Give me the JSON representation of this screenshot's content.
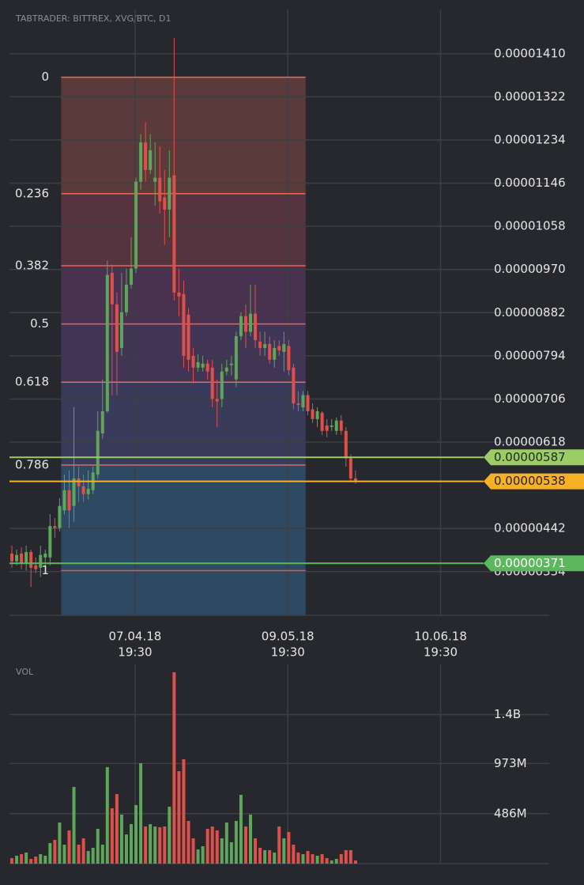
{
  "chart_data": [
    {
      "type": "candlestick",
      "title": "TABTRADER: BITTREX, XVG/BTC, D1",
      "x": [
        "13.03.18",
        "14.03.18",
        "15.03.18",
        "16.03.18",
        "17.03.18",
        "18.03.18",
        "19.03.18",
        "20.03.18",
        "21.03.18",
        "22.03.18",
        "23.03.18",
        "24.03.18",
        "25.03.18",
        "26.03.18",
        "27.03.18",
        "28.03.18",
        "29.03.18",
        "30.03.18",
        "31.03.18",
        "01.04.18",
        "02.04.18",
        "03.04.18",
        "04.04.18",
        "05.04.18",
        "06.04.18",
        "07.04.18",
        "08.04.18",
        "09.04.18",
        "10.04.18",
        "11.04.18",
        "12.04.18",
        "13.04.18",
        "14.04.18",
        "15.04.18",
        "16.04.18",
        "17.04.18",
        "18.04.18",
        "19.04.18",
        "20.04.18",
        "21.04.18",
        "22.04.18",
        "23.04.18",
        "24.04.18",
        "25.04.18",
        "26.04.18",
        "27.04.18",
        "28.04.18",
        "29.04.18",
        "30.04.18",
        "01.05.18",
        "02.05.18",
        "03.05.18",
        "04.05.18",
        "05.05.18",
        "06.05.18",
        "07.05.18",
        "08.05.18",
        "09.05.18",
        "10.05.18",
        "11.05.18",
        "12.05.18",
        "13.05.18",
        "14.05.18",
        "15.05.18",
        "16.05.18",
        "17.05.18",
        "18.05.18",
        "19.05.18",
        "20.05.18",
        "21.05.18",
        "22.05.18",
        "23.05.18",
        "24.05.18"
      ],
      "open": [
        3.91e-06,
        3.75e-06,
        3.91e-06,
        3.72e-06,
        3.94e-06,
        3.67e-06,
        3.62e-06,
        3.83e-06,
        3.83e-06,
        4.47e-06,
        4.43e-06,
        4.79e-06,
        5.2e-06,
        4.88e-06,
        5.44e-06,
        5.28e-06,
        5.12e-06,
        5.2e-06,
        5.52e-06,
        6.36e-06,
        6.81e-06,
        9.63e-06,
        8.99e-06,
        8.1e-06,
        8.83e-06,
        9.39e-06,
        9.72e-06,
        1.149e-05,
        1.229e-05,
        1.173e-05,
        1.149e-05,
        1.157e-05,
        1.117e-05,
        1.092e-05,
        1.162e-05,
        9.23e-06,
        9.2e-06,
        8.78e-06,
        7.94e-06,
        7.7e-06,
        7.7e-06,
        7.78e-06,
        7.7e-06,
        7.06e-06,
        7.06e-06,
        7.62e-06,
        7.75e-06,
        7.46e-06,
        8.34e-06,
        8.75e-06,
        8.43e-06,
        8.8e-06,
        8.23e-06,
        8.1e-06,
        8.18e-06,
        7.86e-06,
        8.14e-06,
        8.02e-06,
        8.14e-06,
        7.7e-06,
        6.97e-06,
        6.89e-06,
        7.14e-06,
        6.85e-06,
        6.65e-06,
        6.78e-06,
        6.52e-06,
        6.49e-06,
        6.41e-06,
        6.62e-06,
        6.41e-06,
        5.85e-06,
        5.44e-06
      ],
      "high": [
        4.07e-06,
        3.99e-06,
        4.04e-06,
        4.07e-06,
        3.99e-06,
        3.83e-06,
        4.07e-06,
        3.99e-06,
        4.71e-06,
        4.63e-06,
        5.04e-06,
        5.52e-06,
        5.6e-06,
        6.89e-06,
        5.68e-06,
        5.52e-06,
        5.6e-06,
        5.68e-06,
        6.81e-06,
        7.46e-06,
        9.88e-06,
        9.8e-06,
        9.23e-06,
        9.63e-06,
        9.72e-06,
        1.036e-05,
        1.157e-05,
        1.246e-05,
        1.27e-05,
        1.246e-05,
        1.229e-05,
        1.221e-05,
        1.173e-05,
        1.213e-05,
        1.442e-05,
        9.72e-06,
        9.47e-06,
        8.91e-06,
        8.1e-06,
        7.97e-06,
        7.94e-06,
        7.86e-06,
        7.86e-06,
        7.46e-06,
        7.78e-06,
        7.86e-06,
        7.94e-06,
        8.43e-06,
        8.83e-06,
        8.99e-06,
        9.39e-06,
        9.39e-06,
        8.43e-06,
        8.43e-06,
        8.34e-06,
        8.26e-06,
        8.26e-06,
        8.43e-06,
        8.26e-06,
        7.78e-06,
        7.22e-06,
        7.22e-06,
        7.22e-06,
        6.97e-06,
        6.89e-06,
        6.81e-06,
        6.65e-06,
        6.65e-06,
        6.68e-06,
        6.73e-06,
        6.49e-06,
        5.93e-06,
        5.6e-06
      ],
      "low": [
        3.62e-06,
        3.67e-06,
        3.59e-06,
        3.56e-06,
        3.23e-06,
        3.51e-06,
        3.43e-06,
        3.67e-06,
        3.67e-06,
        4.23e-06,
        4.36e-06,
        4.71e-06,
        4.43e-06,
        4.56e-06,
        4.96e-06,
        4.96e-06,
        5.01e-06,
        5.12e-06,
        5.44e-06,
        6.25e-06,
        6.78e-06,
        7.14e-06,
        7.14e-06,
        7.94e-06,
        8.75e-06,
        9.31e-06,
        9.63e-06,
        1.133e-05,
        1.149e-05,
        1.165e-05,
        1.1e-05,
        1.084e-05,
        1.02e-05,
        1.036e-05,
        9.07e-06,
        8.75e-06,
        7.7e-06,
        7.62e-06,
        7.38e-06,
        7.62e-06,
        7.62e-06,
        7.46e-06,
        6.89e-06,
        6.49e-06,
        6.89e-06,
        7.54e-06,
        7.54e-06,
        7.3e-06,
        8.26e-06,
        8.1e-06,
        8.34e-06,
        8.1e-06,
        7.94e-06,
        7.94e-06,
        7.78e-06,
        7.7e-06,
        7.94e-06,
        7.62e-06,
        7.54e-06,
        6.85e-06,
        6.81e-06,
        6.81e-06,
        6.73e-06,
        6.57e-06,
        6.49e-06,
        6.33e-06,
        6.28e-06,
        6.41e-06,
        6.33e-06,
        6.33e-06,
        5.68e-06,
        5.36e-06,
        5.33e-06
      ],
      "close": [
        3.75e-06,
        3.88e-06,
        3.72e-06,
        3.94e-06,
        3.62e-06,
        3.59e-06,
        3.88e-06,
        3.91e-06,
        4.47e-06,
        4.43e-06,
        4.88e-06,
        5.2e-06,
        4.79e-06,
        5.44e-06,
        5.28e-06,
        5.12e-06,
        5.23e-06,
        5.56e-06,
        6.41e-06,
        6.81e-06,
        9.59e-06,
        8.99e-06,
        8.02e-06,
        8.83e-06,
        9.39e-06,
        9.72e-06,
        1.149e-05,
        1.229e-05,
        1.173e-05,
        1.213e-05,
        1.157e-05,
        1.109e-05,
        1.092e-05,
        1.157e-05,
        9.23e-06,
        9.15e-06,
        7.94e-06,
        7.86e-06,
        7.7e-06,
        7.81e-06,
        7.78e-06,
        7.62e-06,
        7.06e-06,
        7.01e-06,
        7.62e-06,
        7.7e-06,
        7.78e-06,
        8.34e-06,
        8.75e-06,
        8.43e-06,
        8.8e-06,
        8.26e-06,
        8.1e-06,
        8.18e-06,
        7.86e-06,
        8.1e-06,
        8.05e-06,
        8.18e-06,
        7.65e-06,
        6.97e-06,
        6.94e-06,
        7.14e-06,
        6.81e-06,
        6.65e-06,
        6.81e-06,
        6.41e-06,
        6.41e-06,
        6.52e-06,
        6.62e-06,
        6.41e-06,
        5.85e-06,
        5.44e-06,
        5.38e-06
      ],
      "up_color": "#5fa55a",
      "down_color": "#e0504a",
      "xlim": [
        "12.03.18 12:00",
        "03.07.18 14:00"
      ],
      "xticks": [
        {
          "value": "07.04.18 19:30",
          "label": [
            "07.04.18",
            "19:30"
          ]
        },
        {
          "value": "09.05.18 19:30",
          "label": [
            "09.05.18",
            "19:30"
          ]
        },
        {
          "value": "10.06.18 19:30",
          "label": [
            "10.06.18",
            "19:30"
          ]
        }
      ],
      "ylim": [
        2.65e-06,
        1.5e-05
      ],
      "yticks": [
        {
          "value": 1.41e-05,
          "label": "0.00001410"
        },
        {
          "value": 1.322e-05,
          "label": "0.00001322"
        },
        {
          "value": 1.234e-05,
          "label": "0.00001234"
        },
        {
          "value": 1.146e-05,
          "label": "0.00001146"
        },
        {
          "value": 1.058e-05,
          "label": "0.00001058"
        },
        {
          "value": 9.7e-06,
          "label": "0.00000970"
        },
        {
          "value": 8.82e-06,
          "label": "0.00000882"
        },
        {
          "value": 7.94e-06,
          "label": "0.00000794"
        },
        {
          "value": 7.06e-06,
          "label": "0.00000706"
        },
        {
          "value": 6.18e-06,
          "label": "0.00000618"
        },
        {
          "value": 4.42e-06,
          "label": "0.00000442"
        },
        {
          "value": 3.54e-06,
          "label": "0.00000354"
        }
      ],
      "grid": true,
      "fib": {
        "start": "23.03.18 08:00",
        "end": "13.05.18 13:00",
        "high": 1.362e-05,
        "low": 3.56e-06,
        "levels": [
          0,
          0.236,
          0.382,
          0.5,
          0.618,
          0.786,
          1
        ],
        "line_colors": [
          "#f06a4a",
          "#f06a4a",
          "#ec5f5a",
          "#ec5f5a",
          "#ec6a5a",
          "#d96a70",
          "#c8607a"
        ],
        "band_colors": [
          "#5b3a3c",
          "#55333f",
          "#49324f",
          "#413556",
          "#3a3a5a",
          "#2e4a62"
        ]
      },
      "price_lines": [
        {
          "value": 5.87e-06,
          "label": "0.00000587",
          "color": "#9ccc65",
          "text_color": "#1e2a14"
        },
        {
          "value": 5.38e-06,
          "label": "0.00000538",
          "color": "#f6b126",
          "text_color": "#2a1e08"
        },
        {
          "value": 3.71e-06,
          "label": "0.00000371",
          "color": "#5cb85c",
          "text_color": "#ffffff"
        }
      ]
    },
    {
      "type": "bar",
      "title": "VOL",
      "values": [
        54000000,
        77000000,
        92000000,
        108000000,
        46000000,
        69000000,
        92000000,
        77000000,
        200000000,
        231000000,
        400000000,
        184000000,
        323000000,
        746000000,
        184000000,
        246000000,
        123000000,
        154000000,
        338000000,
        184000000,
        938000000,
        538000000,
        676000000,
        477000000,
        284000000,
        384000000,
        569000000,
        976000000,
        361000000,
        384000000,
        361000000,
        354000000,
        361000000,
        553000000,
        1860000000,
        899000000,
        1015000000,
        415000000,
        246000000,
        138000000,
        169000000,
        338000000,
        361000000,
        323000000,
        246000000,
        400000000,
        208000000,
        415000000,
        669000000,
        361000000,
        477000000,
        246000000,
        154000000,
        131000000,
        131000000,
        108000000,
        361000000,
        246000000,
        307000000,
        184000000,
        108000000,
        92000000,
        123000000,
        92000000,
        77000000,
        92000000,
        54000000,
        31000000,
        46000000,
        92000000,
        131000000,
        131000000,
        31000000
      ],
      "ylim": [
        0,
        1937000000
      ],
      "yticks": [
        {
          "value": 1449000000,
          "label": "1.4B"
        },
        {
          "value": 973000000,
          "label": "973M"
        },
        {
          "value": 486000000,
          "label": "486M"
        }
      ],
      "grid": true
    }
  ]
}
